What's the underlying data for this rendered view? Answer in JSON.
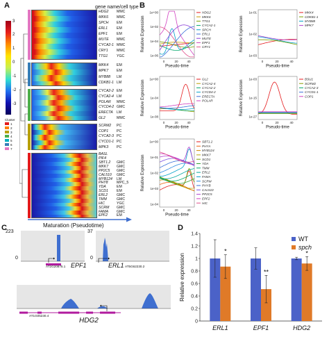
{
  "panel_a": {
    "label": "A",
    "header": "gene name/cell type",
    "colorbar_ticks": [
      "3",
      "2",
      "1",
      "0",
      "-1",
      "-2",
      "-3"
    ],
    "cluster_title": "Cluster",
    "cluster_ids": [
      "1",
      "2",
      "3",
      "4",
      "5",
      "6",
      "7"
    ],
    "cluster_colors": [
      "#e41a1c",
      "#ff7f00",
      "#b8a000",
      "#4daf4a",
      "#00b0c0",
      "#377eb8",
      "#e377c2"
    ],
    "axis_label": "Maturation (Pseudotime)",
    "group1": {
      "genes": [
        "HDG2",
        "MKK6",
        "SPCH",
        "ERL1",
        "EPF1",
        "MUTE",
        "CYCA2-1",
        "CRY1",
        "TTG1"
      ],
      "types": [
        "MMC",
        "MMC",
        "EM",
        "EM",
        "EM",
        "MMC",
        "MMC",
        "MMC",
        "YGC"
      ]
    },
    "group2": {
      "genes": [
        "MKK4",
        "MPK7",
        "MYB88",
        "CDKB1-1"
      ],
      "types": [
        "EM",
        "EM",
        "LM",
        "LM"
      ]
    },
    "group3": {
      "genes": [
        "CYCA2-2",
        "CYCA2-4",
        "POLAR",
        "CYCD4-2",
        "ERECTA",
        "GL2"
      ],
      "types": [
        "EM",
        "LM",
        "MMC",
        "GMC",
        "LM",
        "MMC"
      ]
    },
    "group4": {
      "genes": [
        "SCRM2",
        "COP1",
        "CYCA2-3",
        "CYCD1-1",
        "MPK3"
      ],
      "types": [
        "PC",
        "PC",
        "PC",
        "PC",
        "PC"
      ]
    },
    "group5": {
      "genes": [
        "BASL",
        "PIF4",
        "SBT1.2",
        "MKK7",
        "PP2C5",
        "CAL510",
        "MYB124",
        "PHY8",
        "YDA",
        "SCD1",
        "ERL2",
        "TMM",
        "HIC",
        "SCRM",
        "FAMA",
        "EPF2"
      ],
      "types": [
        "",
        "",
        "GMC",
        "GMC",
        "GMC",
        "GMC",
        "LM",
        "MPC_5",
        "EM",
        "EM",
        "GMC",
        "GMC",
        "YGC",
        "GMC",
        "GMC",
        "EM"
      ]
    }
  },
  "panel_b": {
    "label": "B",
    "ylabel": "Relative Expression",
    "xlabel": "Pseudo-time",
    "xticks": [
      "0",
      "20",
      "40"
    ],
    "plots": [
      {
        "yticks": [
          "1e+00",
          "1e-02",
          "1e-04",
          "1e-06"
        ],
        "legend": [
          "HDG2",
          "MKK6",
          "TTG1",
          "CYCA2-1",
          "SPCH",
          "ERL1",
          "MUTE",
          "EPF1",
          "CRY1"
        ],
        "colors": [
          "#e41a1c",
          "#c99a00",
          "#7aa000",
          "#00a86b",
          "#00a0c8",
          "#3a6fd8",
          "#8a3fd8",
          "#d040c0",
          "#e0508a"
        ]
      },
      {
        "yticks": [
          "1e-01",
          "1e-02",
          "1e-03"
        ],
        "legend": [
          "MKK4",
          "CDKB1-1",
          "MYB88",
          "MPK7"
        ],
        "colors": [
          "#e41a1c",
          "#7aa000",
          "#00a0c8",
          "#b040d0"
        ]
      },
      {
        "yticks": [
          "1e+00",
          "1e-04",
          "1e-08"
        ],
        "legend": [
          "GL2",
          "CYCA2-4",
          "CYCA2-2",
          "CYCD4-2",
          "ERECTA",
          "POLAR"
        ],
        "colors": [
          "#e41a1c",
          "#b8a000",
          "#00a86b",
          "#00a0c8",
          "#3a6fd8",
          "#d040c0"
        ]
      },
      {
        "yticks": [
          "1e-03",
          "1e-15",
          "1e-27"
        ],
        "legend": [
          "BSU1",
          "SCRM2",
          "CYCA2-3",
          "CYCD1-1",
          "COP1"
        ],
        "colors": [
          "#e41a1c",
          "#8a9a00",
          "#00a86b",
          "#3a6fd8",
          "#d040c0"
        ]
      },
      {
        "yticks": [
          "1e+00",
          "1e-01",
          "1e-02",
          "1e-03",
          "1e-04"
        ],
        "legend": [
          "SBT1.2",
          "PHYA",
          "MYB124",
          "MKK7",
          "SCD1",
          "YDA",
          "TMM",
          "ERL2",
          "FAMA",
          "SCRM",
          "PHYB",
          "CAL510",
          "PP2C5",
          "EPF2",
          "HIC"
        ],
        "colors": [
          "#e41a1c",
          "#f06010",
          "#d08a00",
          "#b8a000",
          "#7aa000",
          "#30a030",
          "#00a86b",
          "#00a8a0",
          "#00a0c8",
          "#2a88e0",
          "#3a6fd8",
          "#7a50e0",
          "#b040d0",
          "#d040c0",
          "#e0508a"
        ]
      }
    ]
  },
  "panel_c": {
    "label": "C",
    "track1": {
      "ymax": "223",
      "ymin": "0",
      "gene": "EPF1",
      "locus": "AT2G20875.1"
    },
    "track2": {
      "ymax": "37",
      "ymin": "0",
      "gene": "ERL1",
      "locus": "AT5G62230.2"
    },
    "track3": {
      "gene": "HDG2",
      "locus": "AT1G05230.4"
    }
  },
  "panel_d": {
    "label": "D",
    "legend": [
      {
        "name": "WT",
        "color": "#4b62c8"
      },
      {
        "name": "spch",
        "color": "#e07a28"
      }
    ],
    "chart_data": {
      "type": "bar",
      "categories": [
        "ERL1",
        "EPF1",
        "HDG2"
      ],
      "series": [
        {
          "name": "WT",
          "values": [
            1.0,
            1.0,
            1.0
          ],
          "errors": [
            0.3,
            0.17,
            0.02
          ]
        },
        {
          "name": "spch",
          "values": [
            0.87,
            0.51,
            0.92
          ],
          "errors": [
            0.19,
            0.22,
            0.11
          ]
        }
      ],
      "significance": [
        "*",
        "**",
        "*"
      ],
      "ylabel": "Relative expression",
      "ylim": [
        0,
        1.4
      ],
      "yticks": [
        "0",
        "0.2",
        "0.4",
        "0.6",
        "0.8",
        "1",
        "1.2",
        "1.4"
      ]
    }
  }
}
